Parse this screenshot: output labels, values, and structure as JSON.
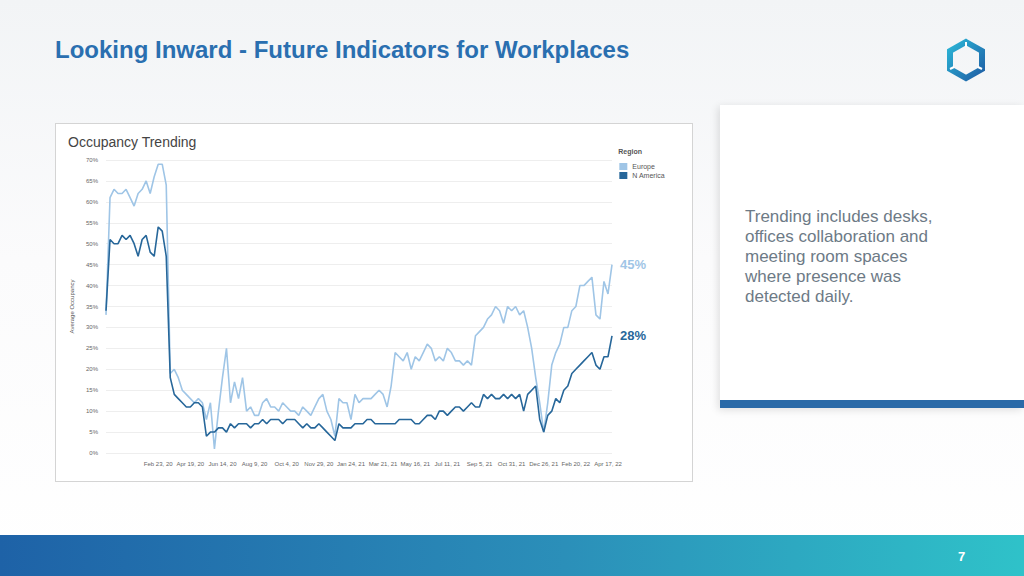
{
  "slide": {
    "title": "Looking Inward - Future Indicators for Workplaces",
    "note_lines": [
      "Trending includes desks,",
      "offices collaboration and",
      "meeting room spaces",
      "where presence was",
      "detected daily."
    ],
    "page": "7"
  },
  "chart_data": {
    "type": "line",
    "title": "Occupancy Trending",
    "y_label": "Average Occupancy",
    "legend": "top-right",
    "legend_title": "Region",
    "grid": true,
    "categories": [
      null,
      null,
      null,
      null,
      null,
      null,
      null,
      null,
      null,
      null,
      null,
      null,
      null,
      "Feb 23, 20",
      null,
      null,
      null,
      null,
      null,
      null,
      null,
      "Apr 19, 20",
      null,
      null,
      null,
      null,
      null,
      null,
      null,
      "Jun 14, 20",
      null,
      null,
      null,
      null,
      null,
      null,
      null,
      "Aug 9, 20",
      null,
      null,
      null,
      null,
      null,
      null,
      null,
      "Oct 4, 20",
      null,
      null,
      null,
      null,
      null,
      null,
      null,
      "Nov 29, 20",
      null,
      null,
      null,
      null,
      null,
      null,
      null,
      "Jan 24, 21",
      null,
      null,
      null,
      null,
      null,
      null,
      null,
      "Mar 21, 21",
      null,
      null,
      null,
      null,
      null,
      null,
      null,
      "May 16, 21",
      null,
      null,
      null,
      null,
      null,
      null,
      null,
      "Jul 11, 21",
      null,
      null,
      null,
      null,
      null,
      null,
      null,
      "Sep 5, 21",
      null,
      null,
      null,
      null,
      null,
      null,
      null,
      "Oct 31, 21",
      null,
      null,
      null,
      null,
      null,
      null,
      null,
      "Dec 26, 21",
      null,
      null,
      null,
      null,
      null,
      null,
      null,
      "Feb 20, 22",
      null,
      null,
      null,
      null,
      null,
      null,
      null,
      "Apr 17, 22",
      null
    ],
    "series": [
      {
        "name": "Europe",
        "color": "#9fc5e6",
        "values": [
          33,
          61,
          63,
          62,
          62,
          63,
          61,
          59,
          62,
          63,
          65,
          62,
          66,
          69,
          69,
          64,
          19,
          20,
          18,
          15,
          14,
          13,
          12,
          13,
          12,
          8,
          12,
          1,
          10,
          18,
          25,
          12,
          17,
          13,
          18,
          10,
          11,
          9,
          9,
          12,
          13,
          11,
          11,
          10,
          12,
          11,
          10,
          10,
          9,
          11,
          10,
          9,
          11,
          13,
          14,
          10,
          8,
          4,
          13,
          12,
          12,
          8,
          14,
          12,
          13,
          13,
          13,
          14,
          15,
          14,
          11,
          16,
          24,
          23,
          22,
          24,
          20,
          23,
          22,
          24,
          26,
          25,
          22,
          23,
          22,
          25,
          24,
          22,
          22,
          21,
          22,
          21,
          28,
          29,
          30,
          32,
          33,
          35,
          34,
          31,
          35,
          34,
          35,
          33,
          34,
          30,
          25,
          18,
          12,
          5,
          12,
          21,
          24,
          26,
          30,
          30,
          34,
          35,
          40,
          40,
          41,
          42,
          33,
          32,
          41,
          38,
          45
        ]
      },
      {
        "name": "N America",
        "color": "#27679a",
        "values": [
          34,
          51,
          50,
          50,
          52,
          51,
          52,
          50,
          47,
          51,
          52,
          48,
          47,
          54,
          53,
          47,
          18,
          14,
          13,
          12,
          11,
          11,
          12,
          12,
          11,
          4,
          5,
          5,
          6,
          6,
          5,
          7,
          6,
          7,
          7,
          7,
          6,
          7,
          7,
          8,
          7,
          8,
          8,
          8,
          7,
          8,
          8,
          8,
          7,
          6,
          7,
          6,
          6,
          7,
          6,
          5,
          4,
          3,
          7,
          6,
          6,
          6,
          7,
          7,
          7,
          8,
          8,
          7,
          7,
          7,
          7,
          7,
          7,
          8,
          8,
          8,
          8,
          7,
          7,
          8,
          9,
          9,
          8,
          10,
          10,
          9,
          10,
          11,
          11,
          10,
          11,
          12,
          11,
          11,
          14,
          13,
          14,
          13,
          13,
          14,
          13,
          14,
          13,
          14,
          10,
          14,
          15,
          16,
          8,
          5,
          9,
          10,
          13,
          12,
          15,
          16,
          19,
          20,
          21,
          22,
          23,
          24,
          21,
          20,
          23,
          23,
          28
        ]
      }
    ],
    "annotations": [
      {
        "series": "Europe",
        "text": "45%"
      },
      {
        "series": "N America",
        "text": "28%"
      }
    ],
    "ylim": [
      0,
      70
    ],
    "yticks": [
      {
        "value": 0,
        "label": "0%"
      },
      {
        "value": 5,
        "label": "5%"
      },
      {
        "value": 10,
        "label": "10%"
      },
      {
        "value": 15,
        "label": "15%"
      },
      {
        "value": 20,
        "label": "20%"
      },
      {
        "value": 25,
        "label": "25%"
      },
      {
        "value": 30,
        "label": "30%"
      },
      {
        "value": 35,
        "label": "35%"
      },
      {
        "value": 40,
        "label": "40%"
      },
      {
        "value": 45,
        "label": "45%"
      },
      {
        "value": 50,
        "label": "50%"
      },
      {
        "value": 55,
        "label": "55%"
      },
      {
        "value": 60,
        "label": "60%"
      },
      {
        "value": 65,
        "label": "65%"
      },
      {
        "value": 70,
        "label": "70%"
      }
    ]
  }
}
